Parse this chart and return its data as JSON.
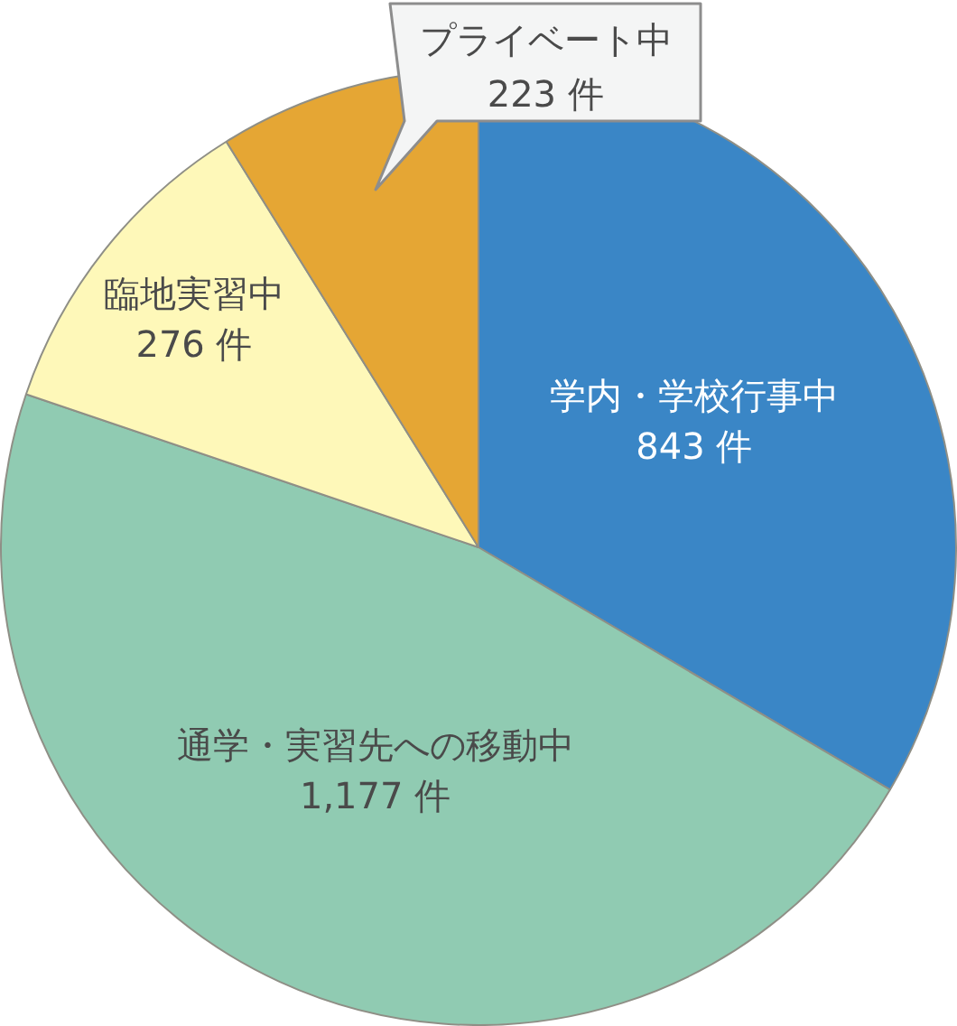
{
  "chart_data": {
    "type": "pie",
    "categories": [
      "学内・学校行事中",
      "通学・実習先への移動中",
      "臨地実習中",
      "プライベート中"
    ],
    "values": [
      843,
      1177,
      276,
      223
    ],
    "colors": [
      "#3a86c6",
      "#90cbb2",
      "#fef8b9",
      "#e5a634"
    ],
    "value_labels": [
      "843 件",
      "1,177 件",
      "276 件",
      "223 件"
    ]
  }
}
